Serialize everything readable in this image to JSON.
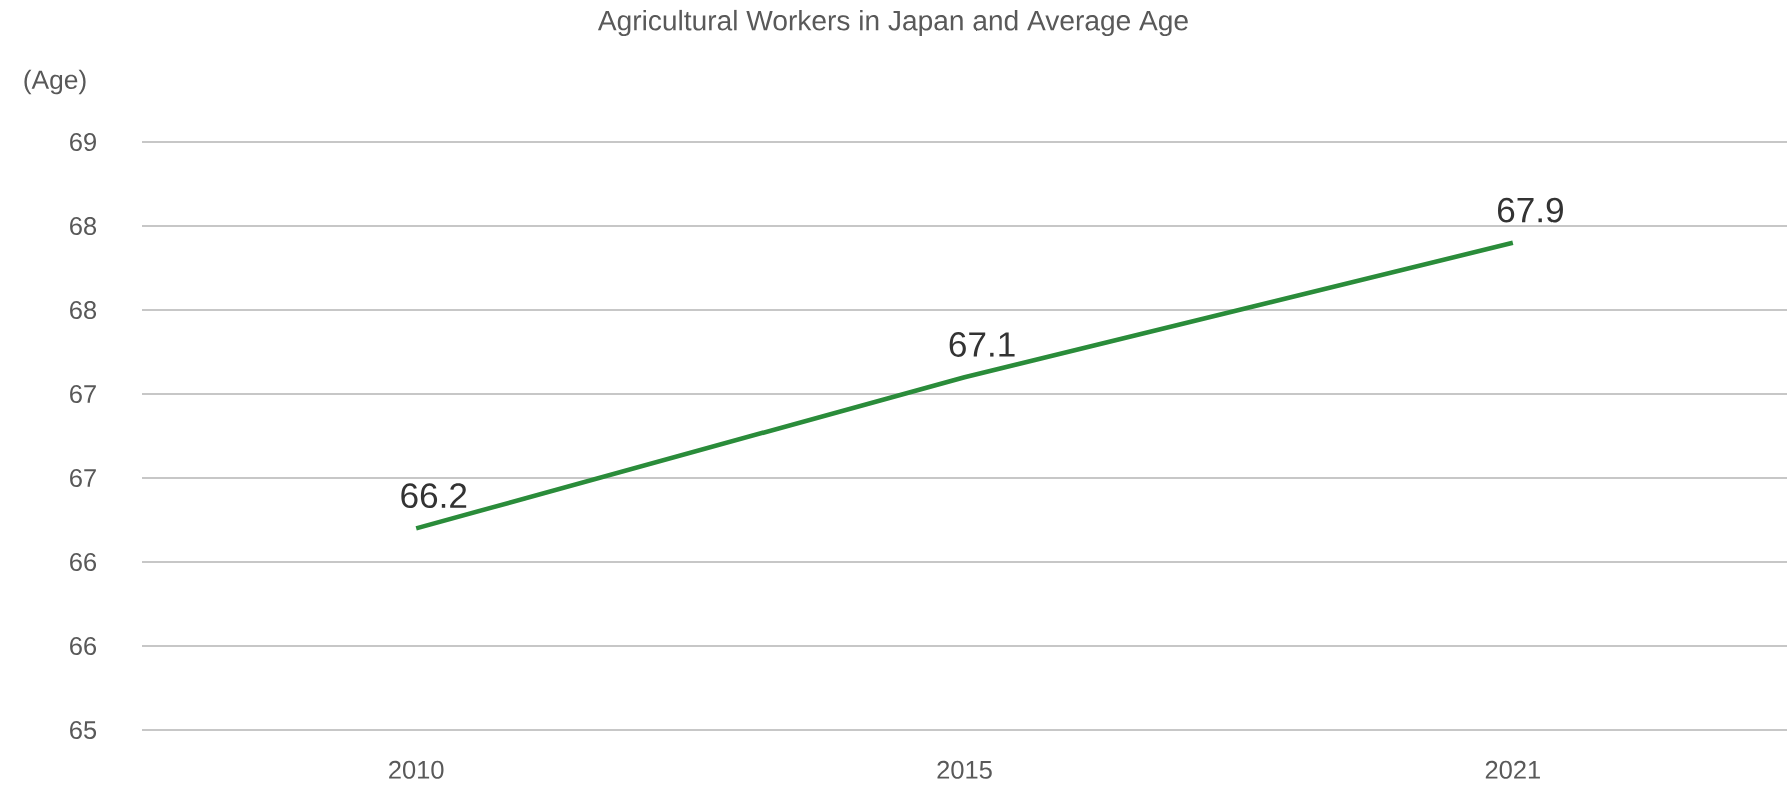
{
  "chart_data": {
    "type": "line",
    "title": "Agricultural Workers in Japan and Average Age",
    "ylabel": "(Age)",
    "categories": [
      "2010",
      "2015",
      "2021"
    ],
    "series": [
      {
        "color": "#2a8c3a",
        "values": [
          66.2,
          67.1,
          67.9
        ]
      }
    ],
    "ylim": [
      65,
      68.5
    ],
    "yticks": [
      {
        "value": 65,
        "label": "65"
      },
      {
        "value": 65.5,
        "label": "66"
      },
      {
        "value": 66,
        "label": "66"
      },
      {
        "value": 66.5,
        "label": "67"
      },
      {
        "value": 67,
        "label": "67"
      },
      {
        "value": 67.5,
        "label": "68"
      },
      {
        "value": 68,
        "label": "68"
      },
      {
        "value": 68.5,
        "label": "69"
      }
    ],
    "grid": "y",
    "marker": "none",
    "line_style": "solid",
    "data_labels": true
  }
}
